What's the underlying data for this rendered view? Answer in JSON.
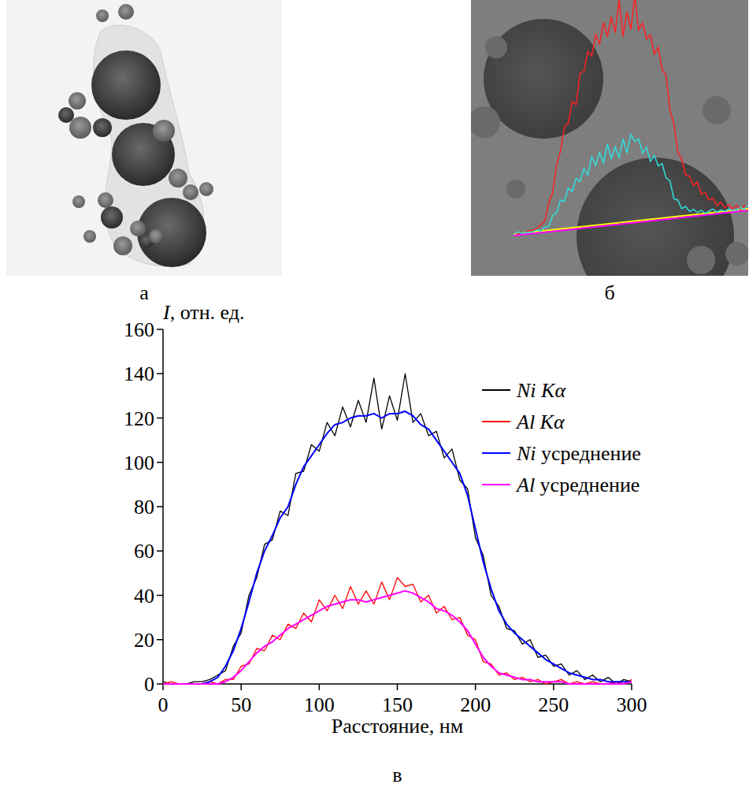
{
  "panels": [
    "а",
    "б",
    "в"
  ],
  "chart_data": {
    "type": "line",
    "y_label": "I, отн. ед.",
    "x_label": "Расстояние, нм",
    "x": [
      0,
      5,
      10,
      15,
      20,
      25,
      30,
      35,
      40,
      45,
      50,
      55,
      60,
      65,
      70,
      75,
      80,
      85,
      90,
      95,
      100,
      105,
      110,
      115,
      120,
      125,
      130,
      135,
      140,
      145,
      150,
      155,
      160,
      165,
      170,
      175,
      180,
      185,
      190,
      195,
      200,
      205,
      210,
      215,
      220,
      225,
      230,
      235,
      240,
      245,
      250,
      255,
      260,
      265,
      270,
      275,
      280,
      285,
      290,
      295,
      300
    ],
    "series": [
      {
        "name": "Ni Kα",
        "color": "#000000",
        "values": [
          1,
          0,
          0,
          0,
          1,
          1,
          2,
          4,
          6,
          17,
          23,
          40,
          48,
          63,
          65,
          78,
          76,
          95,
          96,
          108,
          105,
          118,
          112,
          125,
          116,
          128,
          118,
          138,
          115,
          130,
          119,
          140,
          118,
          122,
          112,
          114,
          102,
          106,
          92,
          88,
          66,
          58,
          40,
          35,
          25,
          24,
          18,
          20,
          12,
          13,
          8,
          9,
          4,
          6,
          2,
          4,
          1,
          3,
          0,
          2,
          1
        ]
      },
      {
        "name": "Al Kα",
        "color": "#ff0000",
        "values": [
          0,
          1,
          0,
          0,
          0,
          0,
          1,
          0,
          2,
          2,
          8,
          9,
          16,
          15,
          22,
          20,
          27,
          25,
          32,
          28,
          38,
          33,
          40,
          34,
          44,
          36,
          42,
          36,
          46,
          38,
          48,
          44,
          45,
          37,
          40,
          32,
          35,
          29,
          30,
          22,
          20,
          10,
          9,
          4,
          5,
          2,
          3,
          1,
          2,
          0,
          1,
          2,
          0,
          1,
          0,
          1,
          0,
          0,
          1,
          0,
          2
        ]
      },
      {
        "name": "Ni усреднение",
        "color": "#0000ff",
        "values": [
          0,
          0,
          0,
          0,
          0,
          0,
          1,
          3,
          8,
          15,
          25,
          37,
          50,
          60,
          67,
          75,
          80,
          90,
          98,
          103,
          108,
          113,
          117,
          118,
          120,
          121,
          121,
          122,
          120,
          122,
          122,
          123,
          121,
          117,
          115,
          110,
          105,
          100,
          95,
          85,
          70,
          55,
          43,
          33,
          27,
          23,
          20,
          17,
          14,
          11,
          9,
          7,
          5,
          4,
          3,
          2,
          2,
          1,
          1,
          1,
          1
        ]
      },
      {
        "name": "Al усреднение",
        "color": "#ff00ff",
        "values": [
          0,
          0,
          0,
          0,
          0,
          0,
          0,
          0,
          1,
          3,
          6,
          10,
          14,
          17,
          19,
          22,
          25,
          27,
          29,
          31,
          33,
          35,
          36,
          37,
          38,
          38,
          37,
          38,
          39,
          40,
          41,
          42,
          41,
          39,
          37,
          34,
          33,
          31,
          28,
          24,
          18,
          12,
          8,
          5,
          4,
          3,
          2,
          2,
          1,
          1,
          1,
          1,
          0,
          0,
          0,
          0,
          0,
          0,
          0,
          0,
          1
        ]
      }
    ],
    "xlim": [
      0,
      300
    ],
    "xticks": [
      0,
      50,
      100,
      150,
      200,
      250,
      300
    ],
    "ylim": [
      0,
      160
    ],
    "yticks": [
      0,
      20,
      40,
      60,
      80,
      100,
      120,
      140,
      160
    ],
    "grid": false,
    "legend": "upper right"
  }
}
